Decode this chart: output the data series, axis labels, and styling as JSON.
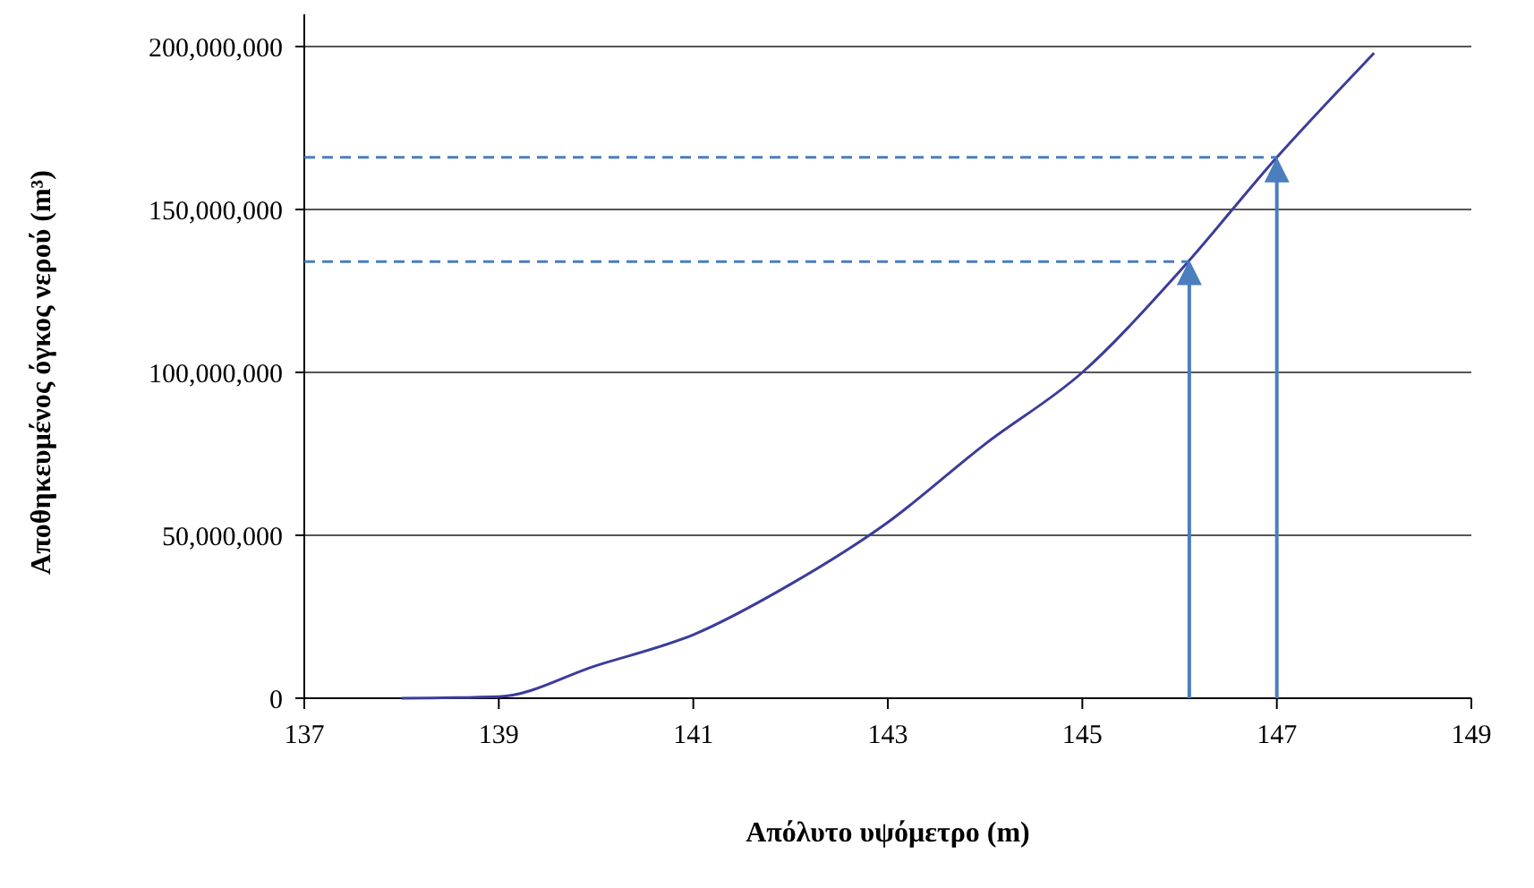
{
  "chart_data": {
    "type": "line",
    "xlabel": "Απόλυτο υψόμετρο (m)",
    "ylabel": "Αποθηκευμένος όγκος νερού (m³)",
    "x": [
      138,
      139,
      140,
      141,
      142,
      143,
      144,
      145,
      146,
      147,
      148
    ],
    "series": [
      {
        "color": "#3c3c9c",
        "values": [
          0,
          500000,
          10000000,
          19500000,
          35000000,
          54000000,
          78000000,
          100000000,
          131000000,
          166000000,
          198000000
        ]
      }
    ],
    "xlim": [
      137,
      149
    ],
    "xticks": [
      137,
      139,
      141,
      143,
      145,
      147,
      149
    ],
    "ylim": [
      0,
      200000000
    ],
    "yticks": [
      {
        "value": 0,
        "label": "0"
      },
      {
        "value": 50000000,
        "label": "50,000,000"
      },
      {
        "value": 100000000,
        "label": "100,000,000"
      },
      {
        "value": 150000000,
        "label": "150,000,000"
      },
      {
        "value": 200000000,
        "label": "200,000,000"
      }
    ],
    "grid": "y",
    "marker": "none",
    "line_style": "solid",
    "ref_lines": [
      {
        "axis": "y",
        "value": 134000000,
        "color": "#4a7ebf",
        "line_style": "dashed"
      },
      {
        "axis": "y",
        "value": 166000000,
        "color": "#4a7ebf",
        "line_style": "dashed"
      },
      {
        "axis": "x",
        "value": 146.1,
        "color": "#4a7ebf",
        "line_style": "solid"
      },
      {
        "axis": "x",
        "value": 147,
        "color": "#4a7ebf",
        "line_style": "solid"
      }
    ]
  }
}
